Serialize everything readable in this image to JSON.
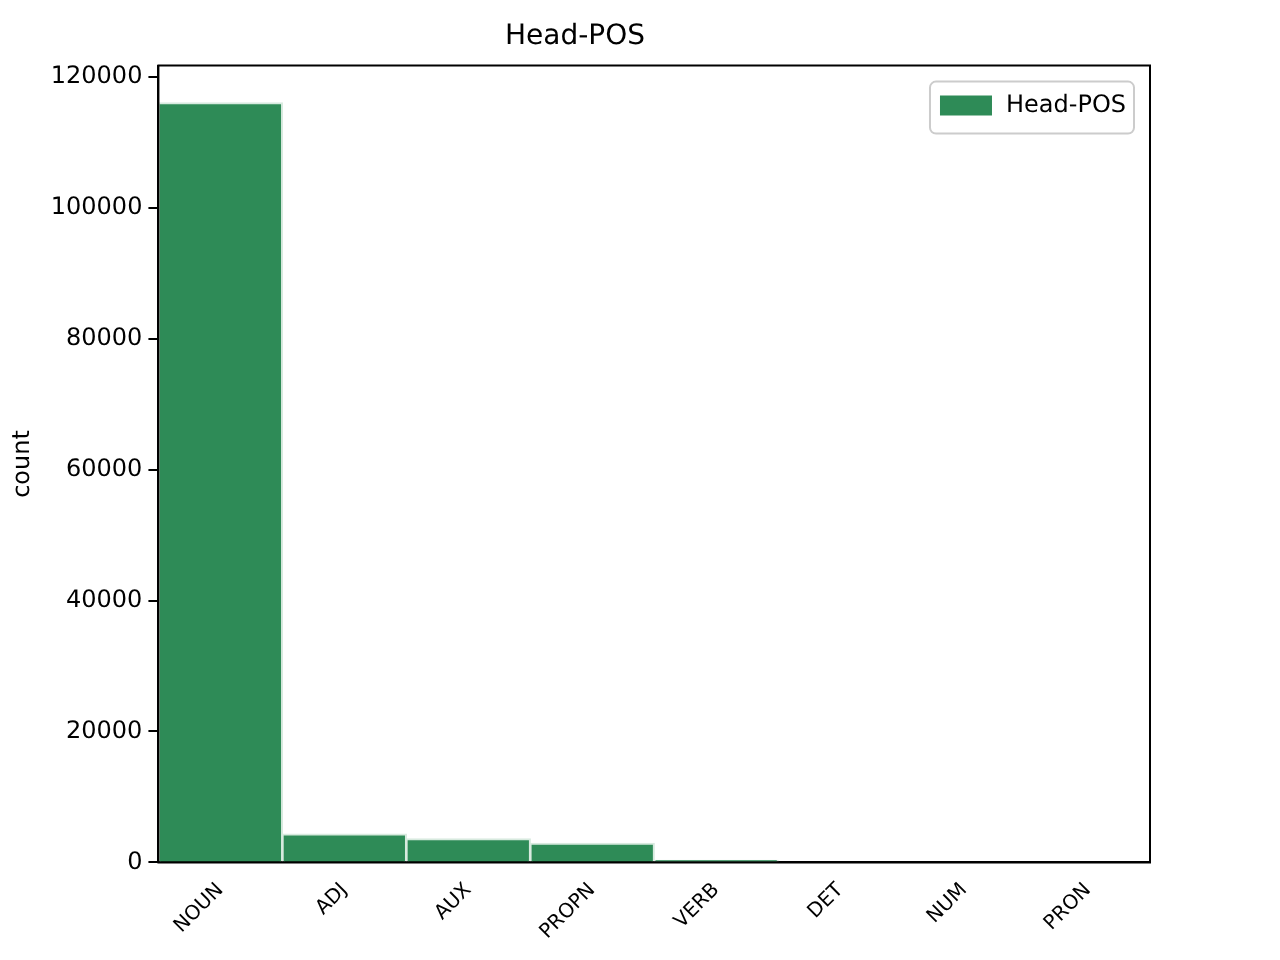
{
  "chart_data": {
    "type": "bar",
    "title": "Head-POS",
    "ylabel": "count",
    "categories": [
      "NOUN",
      "ADJ",
      "AUX",
      "PROPN",
      "VERB",
      "DET",
      "NUM",
      "PRON"
    ],
    "series": [
      {
        "name": "Head-POS",
        "color": "#2e8b57",
        "values": [
          116000,
          4300,
          3600,
          2900,
          300,
          0,
          0,
          0
        ]
      }
    ],
    "ylim": [
      0,
      121700
    ],
    "yticks": [
      0,
      20000,
      40000,
      60000,
      80000,
      100000,
      120000
    ],
    "grid": false,
    "legend": "top right"
  }
}
